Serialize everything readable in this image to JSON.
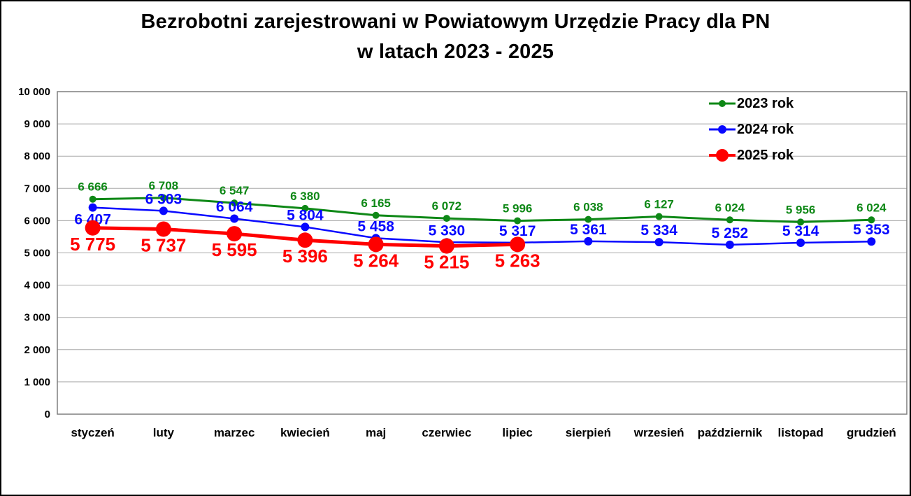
{
  "title": {
    "line1": "Bezrobotni zarejestrowani w Powiatowym Urzędzie Pracy dla PN",
    "line2": "w latach 2023 - 2025"
  },
  "chart_data": {
    "type": "line",
    "categories": [
      "styczeń",
      "luty",
      "marzec",
      "kwiecień",
      "maj",
      "czerwiec",
      "lipiec",
      "sierpień",
      "wrzesień",
      "październik",
      "listopad",
      "grudzień"
    ],
    "series": [
      {
        "name": "2023 rok",
        "color": "#0e8816",
        "values": [
          6666,
          6708,
          6547,
          6380,
          6165,
          6072,
          5996,
          6038,
          6127,
          6024,
          5956,
          6024
        ]
      },
      {
        "name": "2024 rok",
        "color": "#0808ff",
        "values": [
          6407,
          6303,
          6064,
          5804,
          5458,
          5330,
          5317,
          5361,
          5334,
          5252,
          5314,
          5353
        ]
      },
      {
        "name": "2025 rok",
        "color": "#ff0000",
        "values": [
          5775,
          5737,
          5595,
          5396,
          5264,
          5215,
          5263
        ]
      }
    ],
    "ylim": [
      0,
      10000
    ],
    "ytick_step": 1000,
    "ytick_labels": [
      "0",
      "1 000",
      "2 000",
      "3 000",
      "4 000",
      "5 000",
      "6 000",
      "7 000",
      "8 000",
      "9 000",
      "10 000"
    ],
    "grid": "horizontal",
    "legend_position": "top-right",
    "data_labels": true
  },
  "colors": {
    "grid": "#a8a8a8",
    "plot_border": "#7f7f7f",
    "text": "#000000",
    "background": "#ffffff"
  }
}
